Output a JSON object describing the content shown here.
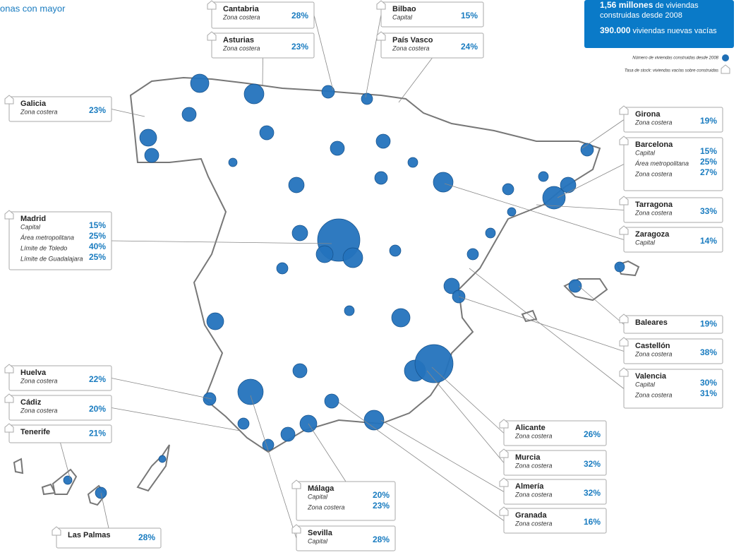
{
  "header": {
    "title": "onas con mayor"
  },
  "summary": {
    "line1_bold": "1,56 millones",
    "line1": "de viviendas",
    "line2": "construidas desde 2008",
    "line3_bold": "390.000",
    "line3": "viviendas nuevas vacías"
  },
  "legend": {
    "bubbles": "Número de viviendas construidas desde 2008",
    "stock": "Tasa de stock: viviendas vacías sobre construidas"
  },
  "boxes": [
    {
      "name": "Cantabria",
      "rows": [
        {
          "label": "Zona costera",
          "value": "28%"
        }
      ]
    },
    {
      "name": "Asturias",
      "rows": [
        {
          "label": "Zona costera",
          "value": "23%"
        }
      ]
    },
    {
      "name": "Bilbao",
      "rows": [
        {
          "label": "Capital",
          "value": "15%"
        }
      ]
    },
    {
      "name": "País Vasco",
      "rows": [
        {
          "label": "Zona costera",
          "value": "24%"
        }
      ]
    },
    {
      "name": "Galicia",
      "rows": [
        {
          "label": "Zona costera",
          "value": "23%"
        }
      ]
    },
    {
      "name": "Madrid",
      "rows": [
        {
          "label": "Capital",
          "value": "15%"
        },
        {
          "label": "Área metropolitana",
          "value": "25%"
        },
        {
          "label": "Límite de Toledo",
          "value": "40%"
        },
        {
          "label": "Límite de Guadalajara",
          "value": "25%"
        }
      ]
    },
    {
      "name": "Huelva",
      "rows": [
        {
          "label": "Zona costera",
          "value": "22%"
        }
      ]
    },
    {
      "name": "Cádiz",
      "rows": [
        {
          "label": "Zona costera",
          "value": "20%"
        }
      ]
    },
    {
      "name": "Tenerife",
      "value": "21%"
    },
    {
      "name": "Las Palmas",
      "value": "28%"
    },
    {
      "name": "Girona",
      "rows": [
        {
          "label": "Zona costera",
          "value": "19%"
        }
      ]
    },
    {
      "name": "Barcelona",
      "rows": [
        {
          "label": "Capital",
          "value": "15%"
        },
        {
          "label": "Área metropolitana",
          "value": "25%"
        },
        {
          "label": "Zona costera",
          "value": "27%"
        }
      ]
    },
    {
      "name": "Tarragona",
      "rows": [
        {
          "label": "Zona costera",
          "value": "33%"
        }
      ]
    },
    {
      "name": "Zaragoza",
      "rows": [
        {
          "label": "Capital",
          "value": "14%"
        }
      ]
    },
    {
      "name": "Baleares",
      "value": "19%"
    },
    {
      "name": "Castellón",
      "rows": [
        {
          "label": "Zona costera",
          "value": "38%"
        }
      ]
    },
    {
      "name": "Valencia",
      "rows": [
        {
          "label": "Capital",
          "value": "30%"
        },
        {
          "label": "Zona costera",
          "value": "31%"
        }
      ]
    },
    {
      "name": "Alicante",
      "rows": [
        {
          "label": "Zona costera",
          "value": "26%"
        }
      ]
    },
    {
      "name": "Murcia",
      "rows": [
        {
          "label": "Zona costera",
          "value": "32%"
        }
      ]
    },
    {
      "name": "Almería",
      "rows": [
        {
          "label": "Zona costera",
          "value": "32%"
        }
      ]
    },
    {
      "name": "Granada",
      "rows": [
        {
          "label": "Zona costera",
          "value": "16%"
        }
      ]
    },
    {
      "name": "Málaga",
      "rows": [
        {
          "label": "Capital",
          "value": "20%"
        },
        {
          "label": "Zona costera",
          "value": "23%"
        }
      ]
    },
    {
      "name": "Sevilla",
      "rows": [
        {
          "label": "Capital",
          "value": "28%"
        }
      ]
    }
  ]
}
